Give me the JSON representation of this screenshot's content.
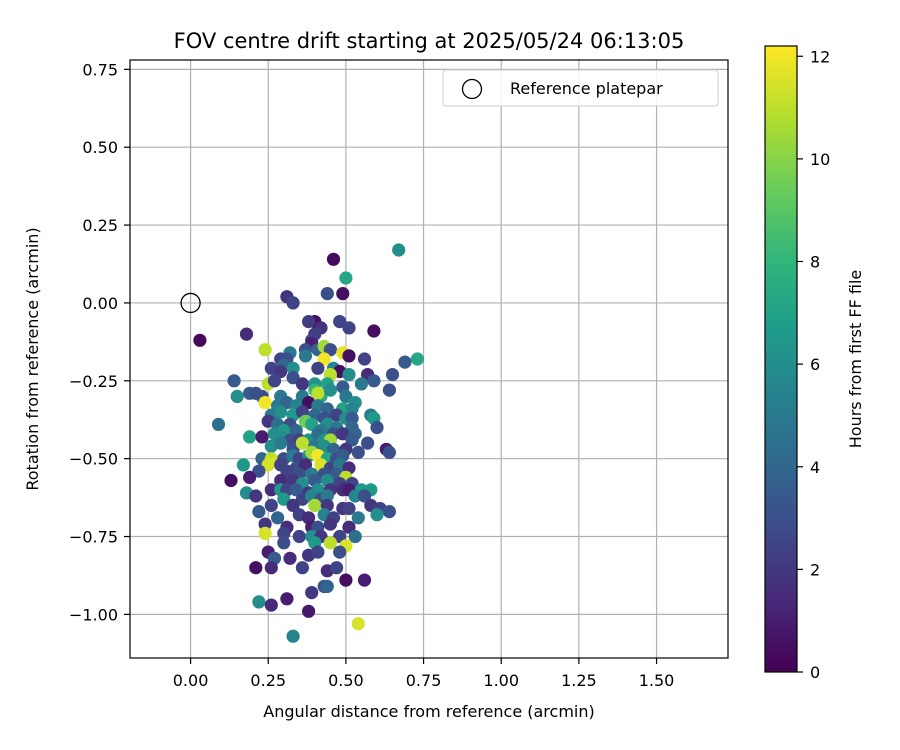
{
  "chart_data": {
    "type": "scatter",
    "title": "FOV centre drift starting at 2025/05/24 06:13:05",
    "xlabel": "Angular distance from reference (arcmin)",
    "ylabel": "Rotation from reference (arcmin)",
    "xlim": [
      -0.195,
      1.73
    ],
    "ylim": [
      -1.14,
      0.78
    ],
    "xticks": [
      0.0,
      0.25,
      0.5,
      0.75,
      1.0,
      1.25,
      1.5
    ],
    "xtick_labels": [
      "0.00",
      "0.25",
      "0.50",
      "0.75",
      "1.00",
      "1.25",
      "1.50"
    ],
    "yticks": [
      0.75,
      0.5,
      0.25,
      0.0,
      -0.25,
      -0.5,
      -0.75,
      -1.0
    ],
    "ytick_labels": [
      "0.75",
      "0.50",
      "0.25",
      "0.00",
      "−0.25",
      "−0.50",
      "−0.75",
      "−1.00"
    ],
    "grid": true,
    "legend": {
      "placement": "top-right",
      "entries": [
        "Reference platepar"
      ]
    },
    "reference_point": {
      "x": 0.0,
      "y": 0.0,
      "marker": "open-circle"
    },
    "colorbar": {
      "label": "Hours from first FF file",
      "range": [
        0,
        12.2
      ],
      "ticks": [
        0,
        2,
        4,
        6,
        8,
        10,
        12
      ],
      "tick_labels": [
        "0",
        "2",
        "4",
        "6",
        "8",
        "10",
        "12"
      ],
      "colormap": "viridis"
    },
    "points": [
      [
        0.03,
        -0.12,
        0.3
      ],
      [
        0.46,
        0.14,
        0.3
      ],
      [
        0.67,
        0.17,
        6.0
      ],
      [
        0.5,
        0.08,
        7.2
      ],
      [
        0.31,
        0.02,
        1.8
      ],
      [
        0.33,
        0.0,
        2.5
      ],
      [
        0.44,
        0.03,
        3.0
      ],
      [
        0.49,
        0.03,
        0.5
      ],
      [
        0.4,
        -0.06,
        0.5
      ],
      [
        0.48,
        -0.06,
        2.6
      ],
      [
        0.51,
        -0.08,
        2.5
      ],
      [
        0.59,
        -0.09,
        0.5
      ],
      [
        0.38,
        -0.06,
        2.2
      ],
      [
        0.42,
        -0.08,
        1.8
      ],
      [
        0.18,
        -0.1,
        1.5
      ],
      [
        0.4,
        -0.1,
        2.3
      ],
      [
        0.39,
        -0.12,
        2.6
      ],
      [
        0.39,
        -0.13,
        1.1
      ],
      [
        0.37,
        -0.15,
        3.0
      ],
      [
        0.32,
        -0.16,
        5.0
      ],
      [
        0.41,
        -0.15,
        4.0
      ],
      [
        0.43,
        -0.14,
        10.5
      ],
      [
        0.45,
        -0.15,
        3.0
      ],
      [
        0.49,
        -0.16,
        11.8
      ],
      [
        0.51,
        -0.17,
        0.5
      ],
      [
        0.24,
        -0.15,
        11.0
      ],
      [
        0.29,
        -0.18,
        2.5
      ],
      [
        0.31,
        -0.18,
        3.0
      ],
      [
        0.37,
        -0.17,
        5.0
      ],
      [
        0.43,
        -0.18,
        12.0
      ],
      [
        0.56,
        -0.18,
        2.5
      ],
      [
        0.73,
        -0.18,
        7.2
      ],
      [
        0.69,
        -0.19,
        3.5
      ],
      [
        0.3,
        -0.2,
        4.0
      ],
      [
        0.33,
        -0.21,
        6.0
      ],
      [
        0.41,
        -0.21,
        2.5
      ],
      [
        0.46,
        -0.21,
        5.5
      ],
      [
        0.48,
        -0.22,
        0.5
      ],
      [
        0.51,
        -0.23,
        6.0
      ],
      [
        0.57,
        -0.23,
        1.5
      ],
      [
        0.65,
        -0.23,
        3.0
      ],
      [
        0.26,
        -0.21,
        2.5
      ],
      [
        0.29,
        -0.22,
        2.0
      ],
      [
        0.14,
        -0.25,
        3.5
      ],
      [
        0.25,
        -0.26,
        11.0
      ],
      [
        0.27,
        -0.25,
        2.5
      ],
      [
        0.33,
        -0.24,
        3.0
      ],
      [
        0.36,
        -0.26,
        2.0
      ],
      [
        0.4,
        -0.26,
        6.2
      ],
      [
        0.45,
        -0.23,
        11.0
      ],
      [
        0.44,
        -0.26,
        7.0
      ],
      [
        0.49,
        -0.27,
        3.5
      ],
      [
        0.55,
        -0.26,
        5.0
      ],
      [
        0.59,
        -0.25,
        3.5
      ],
      [
        0.64,
        -0.28,
        3.0
      ],
      [
        0.19,
        -0.29,
        3.5
      ],
      [
        0.21,
        -0.29,
        3.0
      ],
      [
        0.15,
        -0.3,
        6.0
      ],
      [
        0.23,
        -0.3,
        3.0
      ],
      [
        0.29,
        -0.3,
        5.0
      ],
      [
        0.36,
        -0.3,
        5.0
      ],
      [
        0.4,
        -0.28,
        8.0
      ],
      [
        0.42,
        -0.3,
        7.5
      ],
      [
        0.41,
        -0.29,
        11.0
      ],
      [
        0.45,
        -0.28,
        6.0
      ],
      [
        0.5,
        -0.3,
        5.0
      ],
      [
        0.53,
        -0.32,
        6.0
      ],
      [
        0.24,
        -0.32,
        12.0
      ],
      [
        0.28,
        -0.33,
        5.0
      ],
      [
        0.31,
        -0.32,
        4.0
      ],
      [
        0.34,
        -0.33,
        5.5
      ],
      [
        0.38,
        -0.32,
        0.5
      ],
      [
        0.41,
        -0.33,
        5.0
      ],
      [
        0.44,
        -0.34,
        4.0
      ],
      [
        0.49,
        -0.34,
        7.0
      ],
      [
        0.52,
        -0.34,
        5.5
      ],
      [
        0.26,
        -0.36,
        5.0
      ],
      [
        0.29,
        -0.35,
        6.0
      ],
      [
        0.33,
        -0.36,
        6.5
      ],
      [
        0.36,
        -0.35,
        2.5
      ],
      [
        0.4,
        -0.36,
        4.0
      ],
      [
        0.43,
        -0.37,
        3.0
      ],
      [
        0.47,
        -0.36,
        2.5
      ],
      [
        0.5,
        -0.37,
        6.0
      ],
      [
        0.52,
        -0.37,
        3.5
      ],
      [
        0.58,
        -0.36,
        5.0
      ],
      [
        0.59,
        -0.37,
        6.5
      ],
      [
        0.09,
        -0.39,
        4.5
      ],
      [
        0.25,
        -0.38,
        2.0
      ],
      [
        0.28,
        -0.39,
        4.5
      ],
      [
        0.32,
        -0.39,
        3.0
      ],
      [
        0.37,
        -0.38,
        9.5
      ],
      [
        0.39,
        -0.39,
        7.0
      ],
      [
        0.44,
        -0.39,
        6.0
      ],
      [
        0.47,
        -0.4,
        5.0
      ],
      [
        0.52,
        -0.4,
        4.0
      ],
      [
        0.3,
        -0.41,
        6.5
      ],
      [
        0.34,
        -0.41,
        4.0
      ],
      [
        0.42,
        -0.41,
        5.0
      ],
      [
        0.46,
        -0.42,
        3.0
      ],
      [
        0.49,
        -0.42,
        2.0
      ],
      [
        0.53,
        -0.42,
        4.0
      ],
      [
        0.6,
        -0.4,
        3.0
      ],
      [
        0.19,
        -0.43,
        7.0
      ],
      [
        0.23,
        -0.43,
        1.0
      ],
      [
        0.27,
        -0.42,
        6.0
      ],
      [
        0.29,
        -0.43,
        6.0
      ],
      [
        0.32,
        -0.44,
        3.0
      ],
      [
        0.35,
        -0.44,
        2.5
      ],
      [
        0.38,
        -0.44,
        6.0
      ],
      [
        0.41,
        -0.42,
        4.5
      ],
      [
        0.43,
        -0.44,
        6.0
      ],
      [
        0.45,
        -0.44,
        10.5
      ],
      [
        0.52,
        -0.44,
        3.5
      ],
      [
        0.57,
        -0.45,
        3.0
      ],
      [
        0.26,
        -0.46,
        6.0
      ],
      [
        0.29,
        -0.45,
        5.0
      ],
      [
        0.33,
        -0.47,
        3.0
      ],
      [
        0.36,
        -0.45,
        11.0
      ],
      [
        0.4,
        -0.46,
        5.0
      ],
      [
        0.43,
        -0.46,
        6.0
      ],
      [
        0.46,
        -0.47,
        4.0
      ],
      [
        0.5,
        -0.47,
        2.0
      ],
      [
        0.54,
        -0.48,
        3.0
      ],
      [
        0.63,
        -0.47,
        1.0
      ],
      [
        0.64,
        -0.48,
        3.0
      ],
      [
        0.23,
        -0.5,
        4.0
      ],
      [
        0.26,
        -0.5,
        11.0
      ],
      [
        0.28,
        -0.51,
        11.5
      ],
      [
        0.3,
        -0.5,
        3.0
      ],
      [
        0.33,
        -0.49,
        5.0
      ],
      [
        0.35,
        -0.5,
        2.5
      ],
      [
        0.38,
        -0.49,
        6.0
      ],
      [
        0.39,
        -0.48,
        10.5
      ],
      [
        0.41,
        -0.49,
        12.0
      ],
      [
        0.44,
        -0.5,
        7.0
      ],
      [
        0.47,
        -0.5,
        3.0
      ],
      [
        0.49,
        -0.49,
        3.5
      ],
      [
        0.17,
        -0.52,
        6.5
      ],
      [
        0.25,
        -0.52,
        11.5
      ],
      [
        0.29,
        -0.52,
        2.5
      ],
      [
        0.34,
        -0.53,
        3.0
      ],
      [
        0.37,
        -0.52,
        1.5
      ],
      [
        0.42,
        -0.52,
        11.5
      ],
      [
        0.45,
        -0.53,
        2.5
      ],
      [
        0.48,
        -0.52,
        5.0
      ],
      [
        0.51,
        -0.53,
        1.5
      ],
      [
        0.22,
        -0.54,
        3.0
      ],
      [
        0.19,
        -0.56,
        1.0
      ],
      [
        0.31,
        -0.54,
        2.5
      ],
      [
        0.35,
        -0.55,
        3.0
      ],
      [
        0.39,
        -0.55,
        5.0
      ],
      [
        0.43,
        -0.55,
        3.0
      ],
      [
        0.47,
        -0.55,
        3.5
      ],
      [
        0.5,
        -0.56,
        11.0
      ],
      [
        0.13,
        -0.57,
        0.5
      ],
      [
        0.29,
        -0.57,
        1.5
      ],
      [
        0.33,
        -0.57,
        2.0
      ],
      [
        0.36,
        -0.58,
        6.0
      ],
      [
        0.4,
        -0.57,
        3.5
      ],
      [
        0.44,
        -0.57,
        6.0
      ],
      [
        0.48,
        -0.58,
        2.5
      ],
      [
        0.52,
        -0.58,
        2.5
      ],
      [
        0.18,
        -0.61,
        6.0
      ],
      [
        0.26,
        -0.6,
        1.5
      ],
      [
        0.29,
        -0.6,
        6.5
      ],
      [
        0.31,
        -0.6,
        2.5
      ],
      [
        0.34,
        -0.6,
        3.5
      ],
      [
        0.38,
        -0.61,
        2.0
      ],
      [
        0.41,
        -0.6,
        6.0
      ],
      [
        0.45,
        -0.6,
        2.0
      ],
      [
        0.49,
        -0.6,
        1.5
      ],
      [
        0.51,
        -0.6,
        1.0
      ],
      [
        0.55,
        -0.6,
        6.5
      ],
      [
        0.58,
        -0.6,
        6.5
      ],
      [
        0.21,
        -0.62,
        2.0
      ],
      [
        0.3,
        -0.63,
        6.5
      ],
      [
        0.36,
        -0.63,
        2.5
      ],
      [
        0.39,
        -0.62,
        5.5
      ],
      [
        0.42,
        -0.63,
        3.0
      ],
      [
        0.44,
        -0.62,
        5.0
      ],
      [
        0.53,
        -0.62,
        5.5
      ],
      [
        0.56,
        -0.62,
        3.0
      ],
      [
        0.26,
        -0.65,
        2.5
      ],
      [
        0.33,
        -0.65,
        2.0
      ],
      [
        0.4,
        -0.65,
        10.5
      ],
      [
        0.44,
        -0.65,
        2.0
      ],
      [
        0.49,
        -0.66,
        2.0
      ],
      [
        0.51,
        -0.66,
        2.5
      ],
      [
        0.58,
        -0.65,
        2.0
      ],
      [
        0.61,
        -0.66,
        2.5
      ],
      [
        0.64,
        -0.67,
        3.0
      ],
      [
        0.22,
        -0.67,
        3.5
      ],
      [
        0.28,
        -0.69,
        4.0
      ],
      [
        0.35,
        -0.68,
        2.5
      ],
      [
        0.38,
        -0.69,
        1.5
      ],
      [
        0.43,
        -0.68,
        5.5
      ],
      [
        0.46,
        -0.69,
        2.5
      ],
      [
        0.54,
        -0.69,
        5.0
      ],
      [
        0.6,
        -0.68,
        6.0
      ],
      [
        0.24,
        -0.71,
        2.0
      ],
      [
        0.31,
        -0.72,
        1.5
      ],
      [
        0.39,
        -0.72,
        1.0
      ],
      [
        0.41,
        -0.72,
        3.0
      ],
      [
        0.45,
        -0.71,
        2.0
      ],
      [
        0.51,
        -0.72,
        1.5
      ],
      [
        0.24,
        -0.74,
        11.5
      ],
      [
        0.3,
        -0.74,
        2.5
      ],
      [
        0.35,
        -0.75,
        2.5
      ],
      [
        0.39,
        -0.75,
        6.0
      ],
      [
        0.42,
        -0.75,
        2.0
      ],
      [
        0.48,
        -0.75,
        2.5
      ],
      [
        0.53,
        -0.75,
        4.5
      ],
      [
        0.3,
        -0.77,
        3.0
      ],
      [
        0.4,
        -0.77,
        6.5
      ],
      [
        0.45,
        -0.77,
        11.0
      ],
      [
        0.5,
        -0.78,
        11.5
      ],
      [
        0.25,
        -0.8,
        1.0
      ],
      [
        0.27,
        -0.82,
        3.5
      ],
      [
        0.32,
        -0.82,
        1.5
      ],
      [
        0.38,
        -0.81,
        2.0
      ],
      [
        0.41,
        -0.8,
        2.5
      ],
      [
        0.48,
        -0.8,
        3.0
      ],
      [
        0.21,
        -0.85,
        0.5
      ],
      [
        0.26,
        -0.85,
        1.5
      ],
      [
        0.36,
        -0.85,
        2.5
      ],
      [
        0.44,
        -0.86,
        1.5
      ],
      [
        0.47,
        -0.85,
        2.5
      ],
      [
        0.5,
        -0.89,
        0.5
      ],
      [
        0.56,
        -0.89,
        1.0
      ],
      [
        0.43,
        -0.91,
        3.0
      ],
      [
        0.44,
        -0.91,
        4.0
      ],
      [
        0.39,
        -0.93,
        2.0
      ],
      [
        0.22,
        -0.96,
        6.0
      ],
      [
        0.26,
        -0.97,
        1.5
      ],
      [
        0.31,
        -0.95,
        1.0
      ],
      [
        0.38,
        -0.99,
        0.8
      ],
      [
        0.54,
        -1.03,
        11.5
      ],
      [
        0.33,
        -1.07,
        5.5
      ]
    ]
  }
}
